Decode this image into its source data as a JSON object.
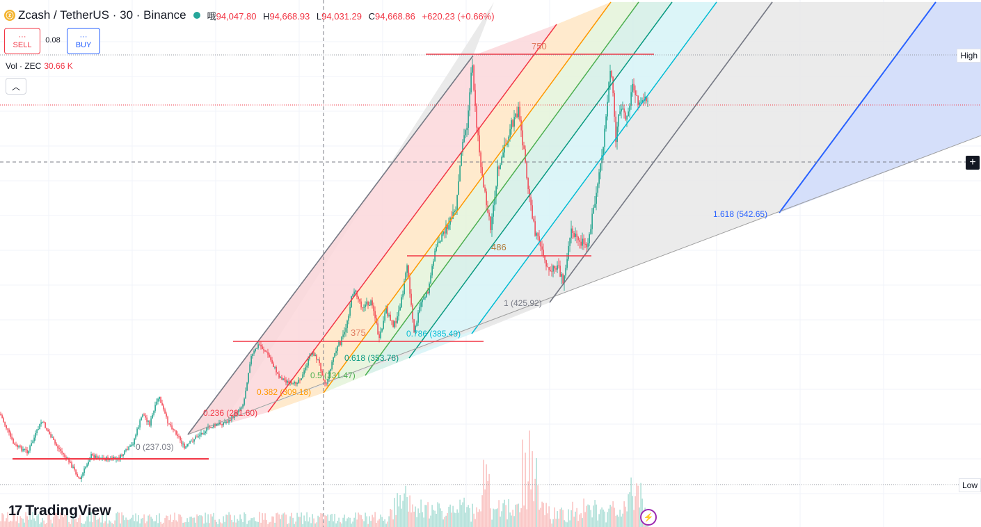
{
  "header": {
    "symbol": "Zcash / TetherUS · 30 · Binance",
    "open_key": "哦",
    "open": "94,047.80",
    "high_key": "H",
    "high": "94,668.93",
    "low_key": "L",
    "low": "94,031.29",
    "close_key": "C",
    "close": "94,668.86",
    "change": "+620.23 (+0.66%)"
  },
  "trade": {
    "sell_dots": "···",
    "sell_label": "SELL",
    "spread": "0.08",
    "buy_dots": "···",
    "buy_label": "BUY"
  },
  "volume": {
    "label": "Vol · ZEC",
    "value": "30.66 K"
  },
  "price_scale": {
    "high_label": "High",
    "low_label": "Low"
  },
  "fib_levels": [
    {
      "label": "0 (237.03)",
      "color": "#787b86"
    },
    {
      "label": "0.236 (281.60)",
      "color": "#f23645"
    },
    {
      "label": "0.382 (309.18)",
      "color": "#ff9800"
    },
    {
      "label": "0.5 (331.47)",
      "color": "#4caf50"
    },
    {
      "label": "0.618 (353.76)",
      "color": "#089981"
    },
    {
      "label": "0.786 (385.49)",
      "color": "#00bcd4"
    },
    {
      "label": "1 (425.92)",
      "color": "#787b86"
    },
    {
      "label": "1.618 (542.65)",
      "color": "#2962ff"
    }
  ],
  "horizontal_levels": [
    {
      "label": "750",
      "color": "#f23645"
    },
    {
      "label": "486",
      "color": "#f23645"
    },
    {
      "label": "375",
      "color": "#f23645"
    }
  ],
  "branding": {
    "name": "TradingView",
    "mark": "17"
  },
  "icons": {
    "coin": "zcash-coin-icon",
    "status": "market-open-dot-icon",
    "collapse": "chevron-up-icon",
    "crosshair": "plus-icon",
    "alert": "lightning-icon"
  },
  "colors": {
    "up": "#089981",
    "down": "#f23645",
    "accent": "#2962ff"
  }
}
